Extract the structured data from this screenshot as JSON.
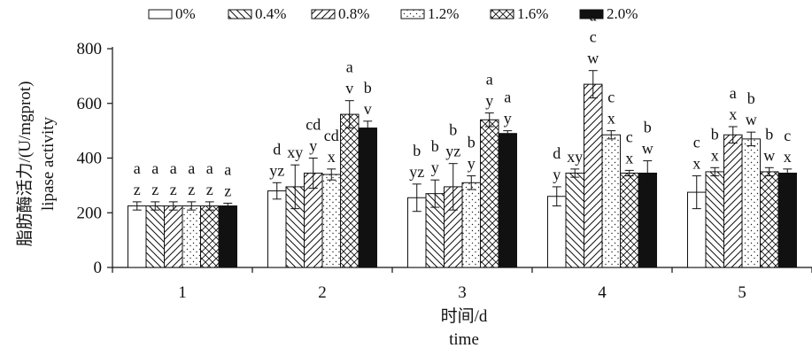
{
  "chart_data": {
    "type": "bar",
    "xlabel_zh": "时间/d",
    "xlabel_en": "time",
    "ylabel_zh": "脂肪酶活力/(U/mgprot)",
    "ylabel_en": "lipase activity",
    "ylim": [
      0,
      800
    ],
    "yticks": [
      "0",
      "200",
      "400",
      "600",
      "800"
    ],
    "categories": [
      "1",
      "2",
      "3",
      "4",
      "5"
    ],
    "legend_position": "top",
    "series": [
      {
        "name": "0%",
        "pattern": "blank",
        "values": [
          225,
          280,
          255,
          260,
          275
        ],
        "errors": [
          15,
          30,
          50,
          35,
          60
        ],
        "labels_top": [
          "a",
          "d",
          "b",
          "d",
          "c"
        ],
        "labels_bottom": [
          "z",
          "yz",
          "yz",
          "y",
          "x"
        ]
      },
      {
        "name": "0.4%",
        "pattern": "backslash",
        "values": [
          225,
          295,
          270,
          345,
          350
        ],
        "errors": [
          15,
          80,
          50,
          15,
          15
        ],
        "labels_top": [
          "a",
          "",
          "b",
          "",
          "b"
        ],
        "labels_bottom": [
          "z",
          "xy",
          "y",
          "xy",
          "x"
        ]
      },
      {
        "name": "0.8%",
        "pattern": "slash",
        "values": [
          225,
          345,
          295,
          670,
          485
        ],
        "errors": [
          15,
          55,
          85,
          50,
          30
        ],
        "labels_top": [
          "a",
          "cd",
          "b",
          "c",
          "a"
        ],
        "labels_bottom": [
          "z",
          "y",
          "yz",
          "w",
          "x"
        ]
      },
      {
        "name": "1.2%",
        "pattern": "dots",
        "values": [
          225,
          340,
          310,
          485,
          470
        ],
        "errors": [
          15,
          20,
          25,
          15,
          25
        ],
        "labels_top": [
          "a",
          "cd",
          "b",
          "c",
          "b"
        ],
        "labels_bottom": [
          "z",
          "x",
          "y",
          "x",
          "w"
        ]
      },
      {
        "name": "1.6%",
        "pattern": "crosshatch",
        "values": [
          225,
          560,
          540,
          345,
          350
        ],
        "errors": [
          15,
          50,
          25,
          10,
          15
        ],
        "labels_top": [
          "a",
          "a",
          "a",
          "c",
          "b"
        ],
        "labels_bottom": [
          "z",
          "v",
          "y",
          "x",
          "w"
        ]
      },
      {
        "name": "2.0%",
        "pattern": "solid",
        "values": [
          225,
          510,
          490,
          345,
          345
        ],
        "errors": [
          10,
          25,
          10,
          45,
          15
        ],
        "labels_top": [
          "a",
          "b",
          "a",
          "b",
          "c"
        ],
        "labels_bottom": [
          "z",
          "v",
          "y",
          "w",
          "x"
        ]
      }
    ],
    "group4_extra_top": "a"
  }
}
